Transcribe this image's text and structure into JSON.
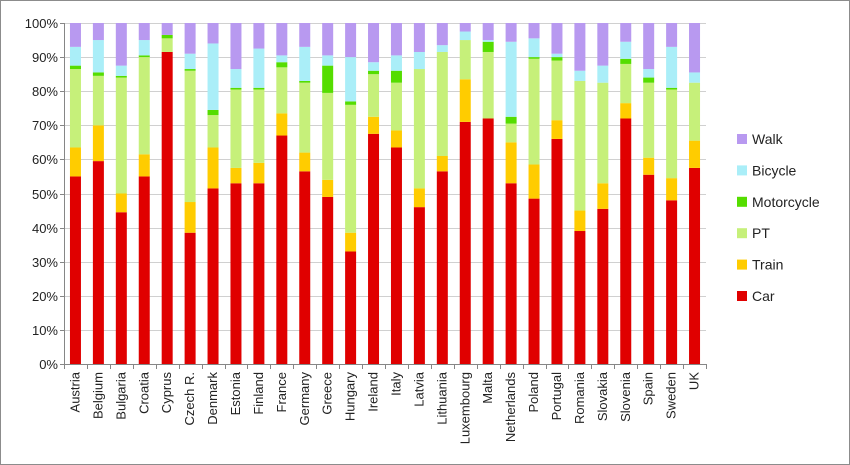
{
  "chart_data": {
    "type": "bar",
    "stacked": true,
    "normalized": true,
    "title": "",
    "xlabel": "",
    "ylabel": "",
    "ylim": [
      0,
      100
    ],
    "yticks": [
      "0%",
      "10%",
      "20%",
      "30%",
      "40%",
      "50%",
      "60%",
      "70%",
      "80%",
      "90%",
      "100%"
    ],
    "grid": "horizontal",
    "legend_position": "right",
    "categories": [
      "Austria",
      "Belgium",
      "Bulgaria",
      "Croatia",
      "Cyprus",
      "Czech R.",
      "Denmark",
      "Estonia",
      "Finland",
      "France",
      "Germany",
      "Greece",
      "Hungary",
      "Ireland",
      "Italy",
      "Latvia",
      "Lithuania",
      "Luxembourg",
      "Malta",
      "Netherlands",
      "Poland",
      "Portugal",
      "Romania",
      "Slovakia",
      "Slovenia",
      "Spain",
      "Sweden",
      "UK"
    ],
    "series": [
      {
        "name": "Car",
        "color": "#e00000",
        "values": [
          55,
          59.5,
          44.5,
          55,
          91.5,
          38.5,
          51.5,
          53,
          53,
          67,
          56.5,
          49,
          33,
          67.5,
          63.5,
          46,
          56.5,
          71,
          72,
          53,
          48.5,
          66,
          39,
          45.5,
          72,
          55.5,
          48,
          57.5
        ]
      },
      {
        "name": "Train",
        "color": "#ffcc00",
        "values": [
          8.5,
          10.5,
          5.5,
          6.5,
          0,
          9,
          12,
          4.5,
          6,
          6.5,
          5.5,
          5,
          5.5,
          5,
          5,
          5.5,
          4.5,
          12.5,
          0,
          12,
          10,
          5.5,
          6,
          7.5,
          4.5,
          5,
          6.5,
          8
        ]
      },
      {
        "name": "PT",
        "color": "#c6f07a",
        "values": [
          23,
          14.5,
          34,
          28.5,
          4,
          38.5,
          9.5,
          23,
          21.5,
          13.5,
          20.5,
          25.5,
          37.5,
          12.5,
          14,
          35,
          30.5,
          11.5,
          19.5,
          5.5,
          31,
          17.5,
          38,
          29.5,
          11.5,
          22,
          26,
          17
        ]
      },
      {
        "name": "Motorcycle",
        "color": "#55dd00",
        "values": [
          1,
          1,
          0.5,
          0.5,
          1,
          0.5,
          1.5,
          0.5,
          0.5,
          1.5,
          0.5,
          8,
          1,
          1,
          3.5,
          0,
          0,
          0,
          3,
          2,
          0.5,
          1,
          0,
          0,
          1.5,
          1.5,
          0.5,
          0
        ]
      },
      {
        "name": "Bicycle",
        "color": "#aaeef8",
        "values": [
          5.5,
          9.5,
          3,
          4.5,
          0,
          4.5,
          19.5,
          5.5,
          11.5,
          2,
          10,
          3,
          13,
          2.5,
          4.5,
          5,
          2,
          2.5,
          0.5,
          22,
          5.5,
          1,
          3,
          5,
          5,
          2.5,
          12,
          3
        ]
      },
      {
        "name": "Walk",
        "color": "#b899f0",
        "values": [
          7,
          5,
          12.5,
          5,
          3.5,
          9,
          6,
          13.5,
          7.5,
          9.5,
          7,
          9.5,
          10,
          11.5,
          9.5,
          8.5,
          6.5,
          2.5,
          5,
          5.5,
          4.5,
          9,
          14,
          12.5,
          5.5,
          13.5,
          7,
          14.5
        ]
      }
    ]
  }
}
